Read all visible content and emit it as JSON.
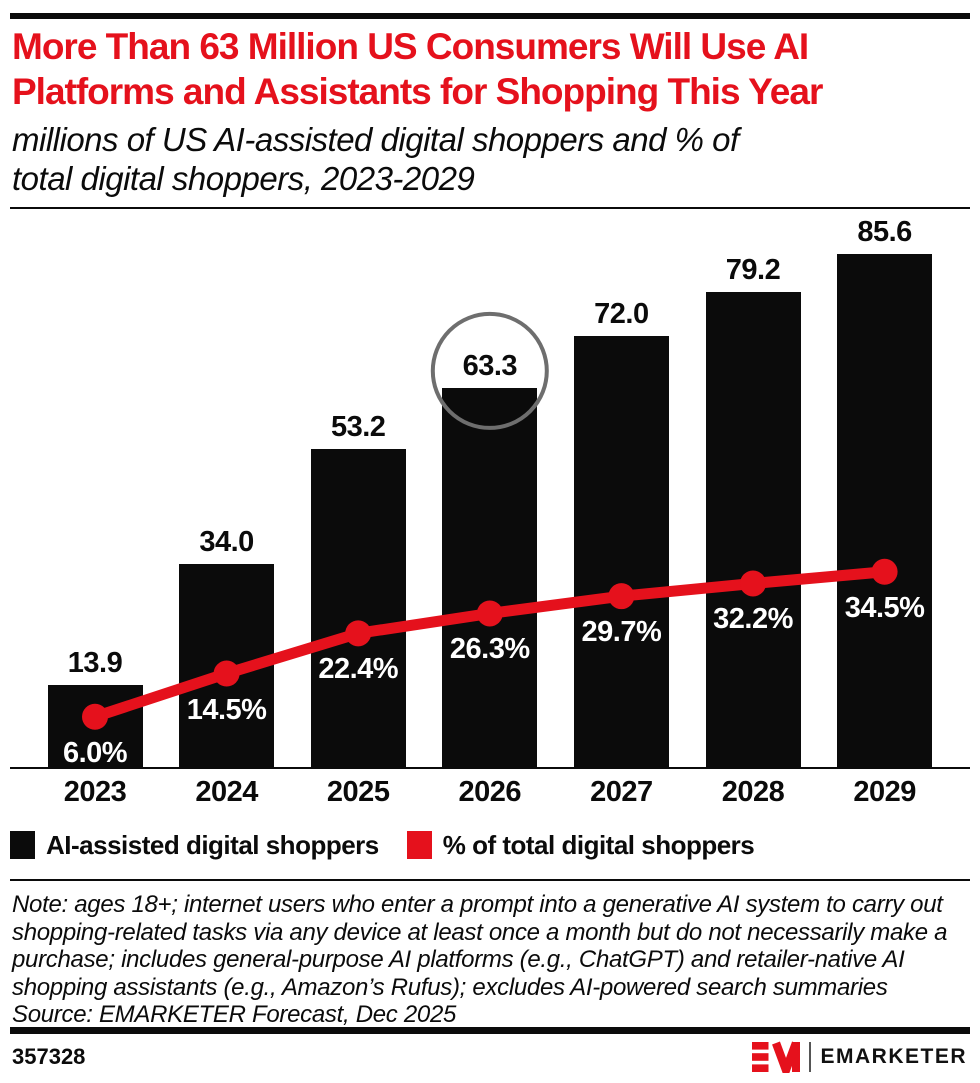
{
  "header": {
    "title_lines": [
      "More Than 63 Million US Consumers Will Use AI",
      "Platforms and Assistants for Shopping This Year"
    ],
    "subtitle_lines": [
      "millions of US AI-assisted digital shoppers and % of",
      "total digital shoppers, 2023-2029"
    ]
  },
  "chart_data": {
    "type": "bar",
    "categories": [
      "2023",
      "2024",
      "2025",
      "2026",
      "2027",
      "2028",
      "2029"
    ],
    "series": [
      {
        "name": "AI-assisted digital shoppers",
        "chart_type": "bar",
        "unit": "millions",
        "color": "#0b0b0b",
        "values": [
          13.9,
          34.0,
          53.2,
          63.3,
          72.0,
          79.2,
          85.6
        ],
        "labels": [
          "13.9",
          "34.0",
          "53.2",
          "63.3",
          "72.0",
          "79.2",
          "85.6"
        ]
      },
      {
        "name": "% of total digital shoppers",
        "chart_type": "line",
        "unit": "%",
        "color": "#e5111c",
        "values": [
          6.0,
          14.5,
          22.4,
          26.3,
          29.7,
          32.2,
          34.5
        ],
        "labels": [
          "6.0%",
          "14.5%",
          "22.4%",
          "26.3%",
          "29.7%",
          "32.2%",
          "34.5%"
        ]
      }
    ],
    "highlight": {
      "category": "2026",
      "series": "AI-assisted digital shoppers",
      "value": 63.3,
      "shape": "circle",
      "color": "#6e6e6e"
    },
    "xlabel": "",
    "ylabel": "",
    "grid": false,
    "legend_position": "bottom"
  },
  "legend": {
    "items": [
      {
        "label": "AI-assisted digital shoppers",
        "color": "#0b0b0b"
      },
      {
        "label": "% of total digital shoppers",
        "color": "#e5111c"
      }
    ]
  },
  "note": {
    "lines": [
      "Note: ages 18+; internet users who enter a prompt into a generative AI system to carry out",
      "shopping-related tasks via any device at least once a month but do not necessarily make a",
      "purchase; includes general-purpose AI platforms (e.g., ChatGPT) and retailer-native AI",
      "shopping assistants (e.g., Amazon’s Rufus); excludes AI-powered search summaries"
    ],
    "source": "Source: EMARKETER Forecast, Dec 2025"
  },
  "footer": {
    "chart_id": "357328",
    "brand": "EMARKETER"
  }
}
